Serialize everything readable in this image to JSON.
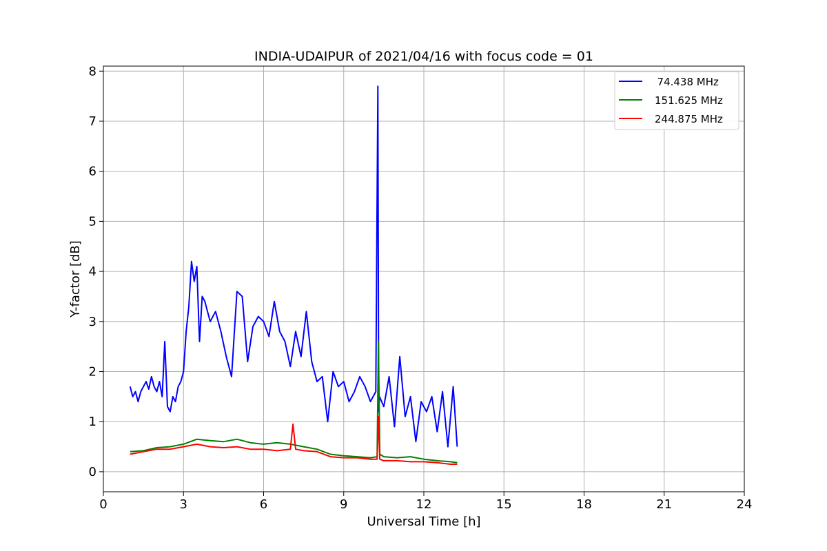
{
  "chart_data": {
    "type": "line",
    "title": "INDIA-UDAIPUR of 2021/04/16 with focus code = 01",
    "xlabel": "Universal Time [h]",
    "ylabel": "Y-factor [dB]",
    "xlim": [
      0,
      24
    ],
    "ylim": [
      -0.4,
      8.1
    ],
    "xticks": [
      0,
      3,
      6,
      9,
      12,
      15,
      18,
      21,
      24
    ],
    "yticks": [
      0,
      1,
      2,
      3,
      4,
      5,
      6,
      7,
      8
    ],
    "grid": true,
    "legend_position": "top-right",
    "series": [
      {
        "name": "74.438 MHz",
        "legend_label": "  74.438 MHz",
        "color": "#0000ff",
        "x": [
          1.0,
          1.1,
          1.2,
          1.3,
          1.4,
          1.5,
          1.6,
          1.7,
          1.8,
          1.9,
          2.0,
          2.1,
          2.2,
          2.3,
          2.4,
          2.5,
          2.6,
          2.7,
          2.8,
          2.9,
          3.0,
          3.1,
          3.2,
          3.3,
          3.4,
          3.5,
          3.6,
          3.7,
          3.8,
          3.9,
          4.0,
          4.2,
          4.4,
          4.6,
          4.8,
          5.0,
          5.2,
          5.4,
          5.6,
          5.8,
          6.0,
          6.2,
          6.4,
          6.6,
          6.8,
          7.0,
          7.2,
          7.4,
          7.6,
          7.8,
          8.0,
          8.2,
          8.4,
          8.6,
          8.8,
          9.0,
          9.2,
          9.4,
          9.6,
          9.8,
          10.0,
          10.2,
          10.28,
          10.31,
          10.34,
          10.5,
          10.7,
          10.9,
          11.1,
          11.3,
          11.5,
          11.7,
          11.9,
          12.1,
          12.3,
          12.5,
          12.7,
          12.9,
          13.1,
          13.25
        ],
        "y": [
          1.7,
          1.5,
          1.6,
          1.4,
          1.6,
          1.7,
          1.8,
          1.65,
          1.9,
          1.7,
          1.6,
          1.8,
          1.5,
          2.6,
          1.3,
          1.2,
          1.5,
          1.4,
          1.7,
          1.8,
          2.0,
          2.8,
          3.3,
          4.2,
          3.8,
          4.1,
          2.6,
          3.5,
          3.4,
          3.2,
          3.0,
          3.2,
          2.8,
          2.3,
          1.9,
          3.6,
          3.5,
          2.2,
          2.9,
          3.1,
          3.0,
          2.7,
          3.4,
          2.8,
          2.6,
          2.1,
          2.8,
          2.3,
          3.2,
          2.2,
          1.8,
          1.9,
          1.0,
          2.0,
          1.7,
          1.8,
          1.4,
          1.6,
          1.9,
          1.7,
          1.4,
          1.6,
          7.7,
          1.2,
          1.5,
          1.3,
          1.9,
          0.9,
          2.3,
          1.1,
          1.5,
          0.6,
          1.4,
          1.2,
          1.5,
          0.8,
          1.6,
          0.5,
          1.7,
          0.5
        ]
      },
      {
        "name": "151.625 MHz",
        "legend_label": "151.625 MHz",
        "color": "#008000",
        "x": [
          1.0,
          1.5,
          2.0,
          2.5,
          3.0,
          3.5,
          4.0,
          4.5,
          5.0,
          5.5,
          6.0,
          6.5,
          7.0,
          7.5,
          8.0,
          8.5,
          9.0,
          9.5,
          10.0,
          10.25,
          10.3,
          10.35,
          10.5,
          11.0,
          11.5,
          12.0,
          12.5,
          13.0,
          13.25
        ],
        "y": [
          0.4,
          0.42,
          0.48,
          0.5,
          0.55,
          0.65,
          0.62,
          0.6,
          0.65,
          0.58,
          0.55,
          0.58,
          0.55,
          0.5,
          0.45,
          0.35,
          0.32,
          0.3,
          0.28,
          0.3,
          2.6,
          0.35,
          0.3,
          0.28,
          0.3,
          0.25,
          0.22,
          0.2,
          0.18
        ]
      },
      {
        "name": "244.875 MHz",
        "legend_label": "244.875 MHz",
        "color": "#ff0000",
        "x": [
          1.0,
          1.5,
          2.0,
          2.5,
          3.0,
          3.5,
          4.0,
          4.5,
          5.0,
          5.5,
          6.0,
          6.5,
          7.0,
          7.1,
          7.2,
          7.5,
          8.0,
          8.5,
          9.0,
          9.5,
          10.0,
          10.25,
          10.3,
          10.35,
          10.5,
          11.0,
          11.5,
          12.0,
          12.5,
          13.0,
          13.25
        ],
        "y": [
          0.35,
          0.4,
          0.45,
          0.45,
          0.5,
          0.55,
          0.5,
          0.48,
          0.5,
          0.45,
          0.45,
          0.42,
          0.45,
          0.95,
          0.45,
          0.42,
          0.4,
          0.3,
          0.28,
          0.28,
          0.25,
          0.25,
          1.1,
          0.25,
          0.22,
          0.22,
          0.2,
          0.2,
          0.18,
          0.15,
          0.15
        ]
      }
    ]
  }
}
